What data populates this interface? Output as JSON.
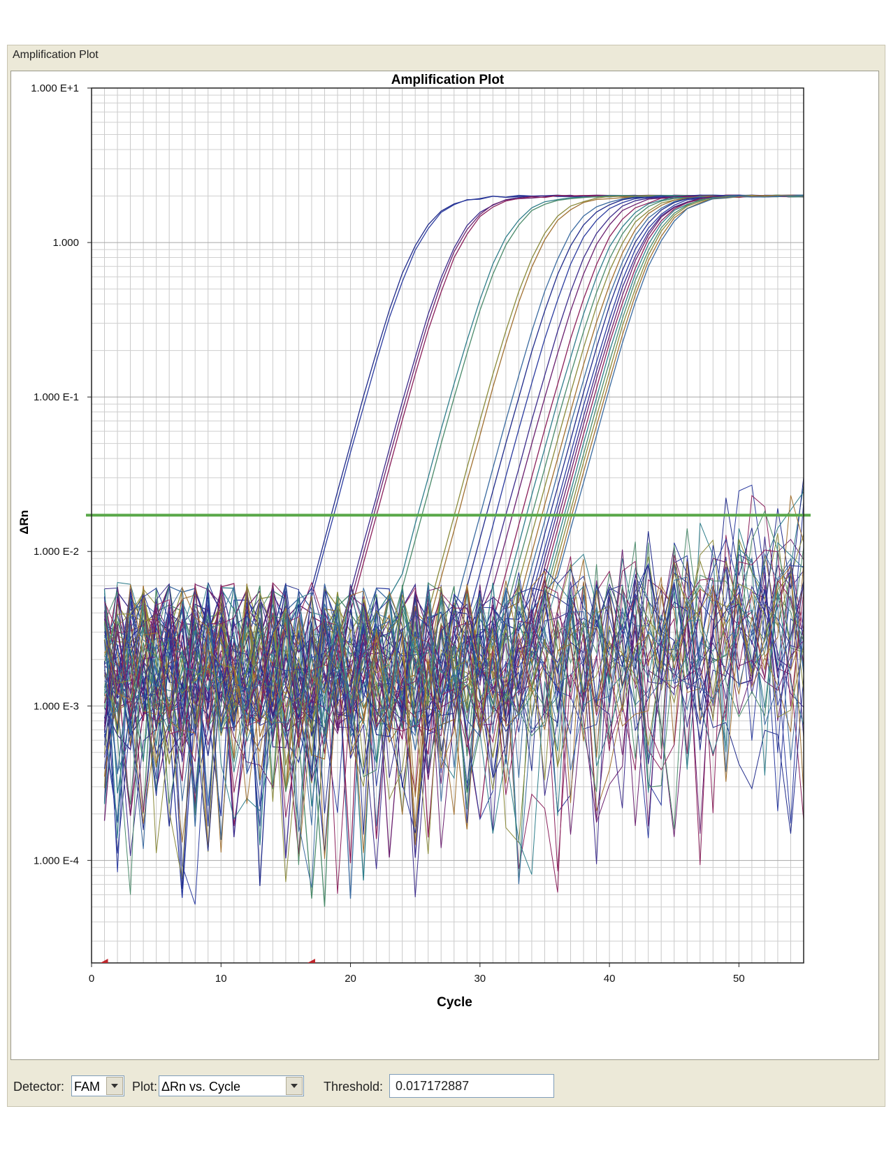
{
  "window": {
    "title": "Amplification Plot"
  },
  "chart_data": {
    "type": "line",
    "title": "Amplification Plot",
    "xlabel": "Cycle",
    "ylabel": "ΔRn",
    "xlim": [
      0,
      55
    ],
    "ylim": [
      2.17e-05,
      10
    ],
    "yscale": "log",
    "grid": true,
    "x_ticks": [
      0,
      10,
      20,
      30,
      40,
      50
    ],
    "x_tick_labels": [
      "0",
      "10",
      "20",
      "30",
      "40",
      "50"
    ],
    "y_ticks": [
      10,
      1,
      0.1,
      0.01,
      0.001,
      0.0001
    ],
    "y_tick_labels": [
      "1.000 E+1",
      "1.000",
      "1.000 E-1",
      "1.000 E-2",
      "1.000 E-3",
      "1.000 E-4"
    ],
    "threshold": 0.017172887,
    "threshold_color": "#5aa84a",
    "baseline_markers": [
      1,
      17
    ],
    "series_colors": [
      "#1f2a8a",
      "#2a3a9e",
      "#3a2a8a",
      "#6a1f6e",
      "#8a1f5a",
      "#2e7d8a",
      "#4a8a6a",
      "#8a8a3a",
      "#a07030",
      "#3a6aa0"
    ],
    "amplification_curve_ct": [
      18.5,
      18.7,
      21.6,
      21.8,
      22.0,
      25.2,
      25.5,
      28.0,
      28.3,
      30.0,
      30.5,
      31.2,
      32.0,
      32.5,
      33.2,
      33.6,
      34.0,
      34.4,
      34.8,
      35.1,
      35.4,
      35.7,
      35.9,
      36.1,
      36.3,
      36.5,
      36.7,
      36.9,
      37.1,
      37.3
    ],
    "plateau": 2.0
  },
  "toolbar": {
    "detector_label": "Detector:",
    "detector_value": "FAM",
    "plot_label": "Plot:",
    "plot_value": "ΔRn vs. Cycle",
    "threshold_label": "Threshold:",
    "threshold_value": "0.017172887"
  }
}
